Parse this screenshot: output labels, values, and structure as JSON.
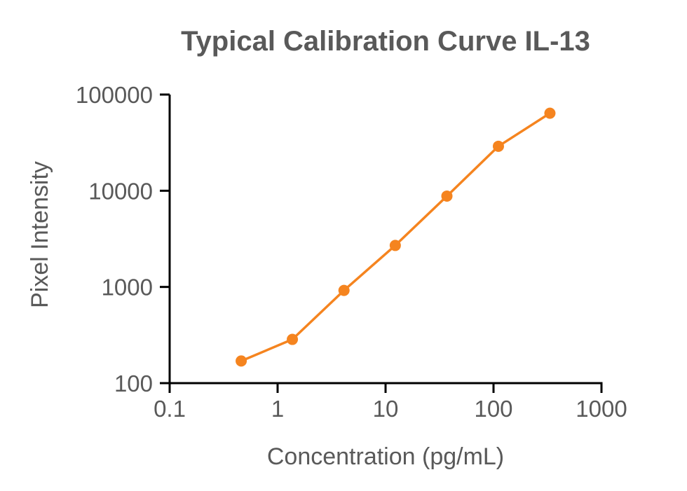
{
  "chart_data": {
    "type": "line",
    "title": "Typical Calibration Curve IL-13",
    "xlabel": "Concentration (pg/mL)",
    "ylabel": "Pixel Intensity",
    "xscale": "log",
    "yscale": "log",
    "xlim": [
      0.1,
      1000
    ],
    "ylim": [
      100,
      100000
    ],
    "xticks": [
      "0.1",
      "1",
      "10",
      "100",
      "1000"
    ],
    "yticks": [
      "100",
      "1000",
      "10000",
      "100000"
    ],
    "grid": false,
    "legend": "none",
    "series": [
      {
        "color": "#F5841F",
        "marker": "circle",
        "x": [
          0.46,
          1.37,
          4.12,
          12.3,
          37.0,
          111,
          333
        ],
        "y": [
          170,
          285,
          920,
          2700,
          8800,
          29000,
          64000
        ]
      }
    ]
  }
}
